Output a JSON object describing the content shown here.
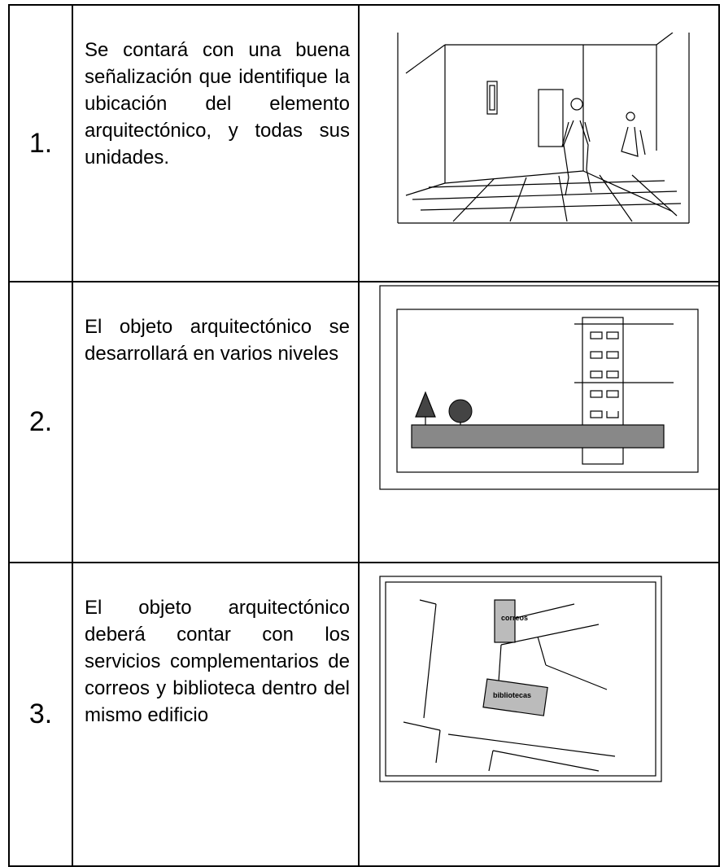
{
  "table": {
    "rows": [
      {
        "number": "1.",
        "text": "Se contará con una buena señalización que identifique la ubicación del elemento arquitectónico, y todas sus unidades."
      },
      {
        "number": "2.",
        "text": "El objeto arquitectónico se desarrollará en varios niveles"
      },
      {
        "number": "3.",
        "text": "El objeto arquitectónico deberá contar con los servicios complementarios de correos y biblioteca dentro del mismo edificio",
        "figure_labels": [
          "correos",
          "bibliotecas"
        ]
      }
    ]
  }
}
